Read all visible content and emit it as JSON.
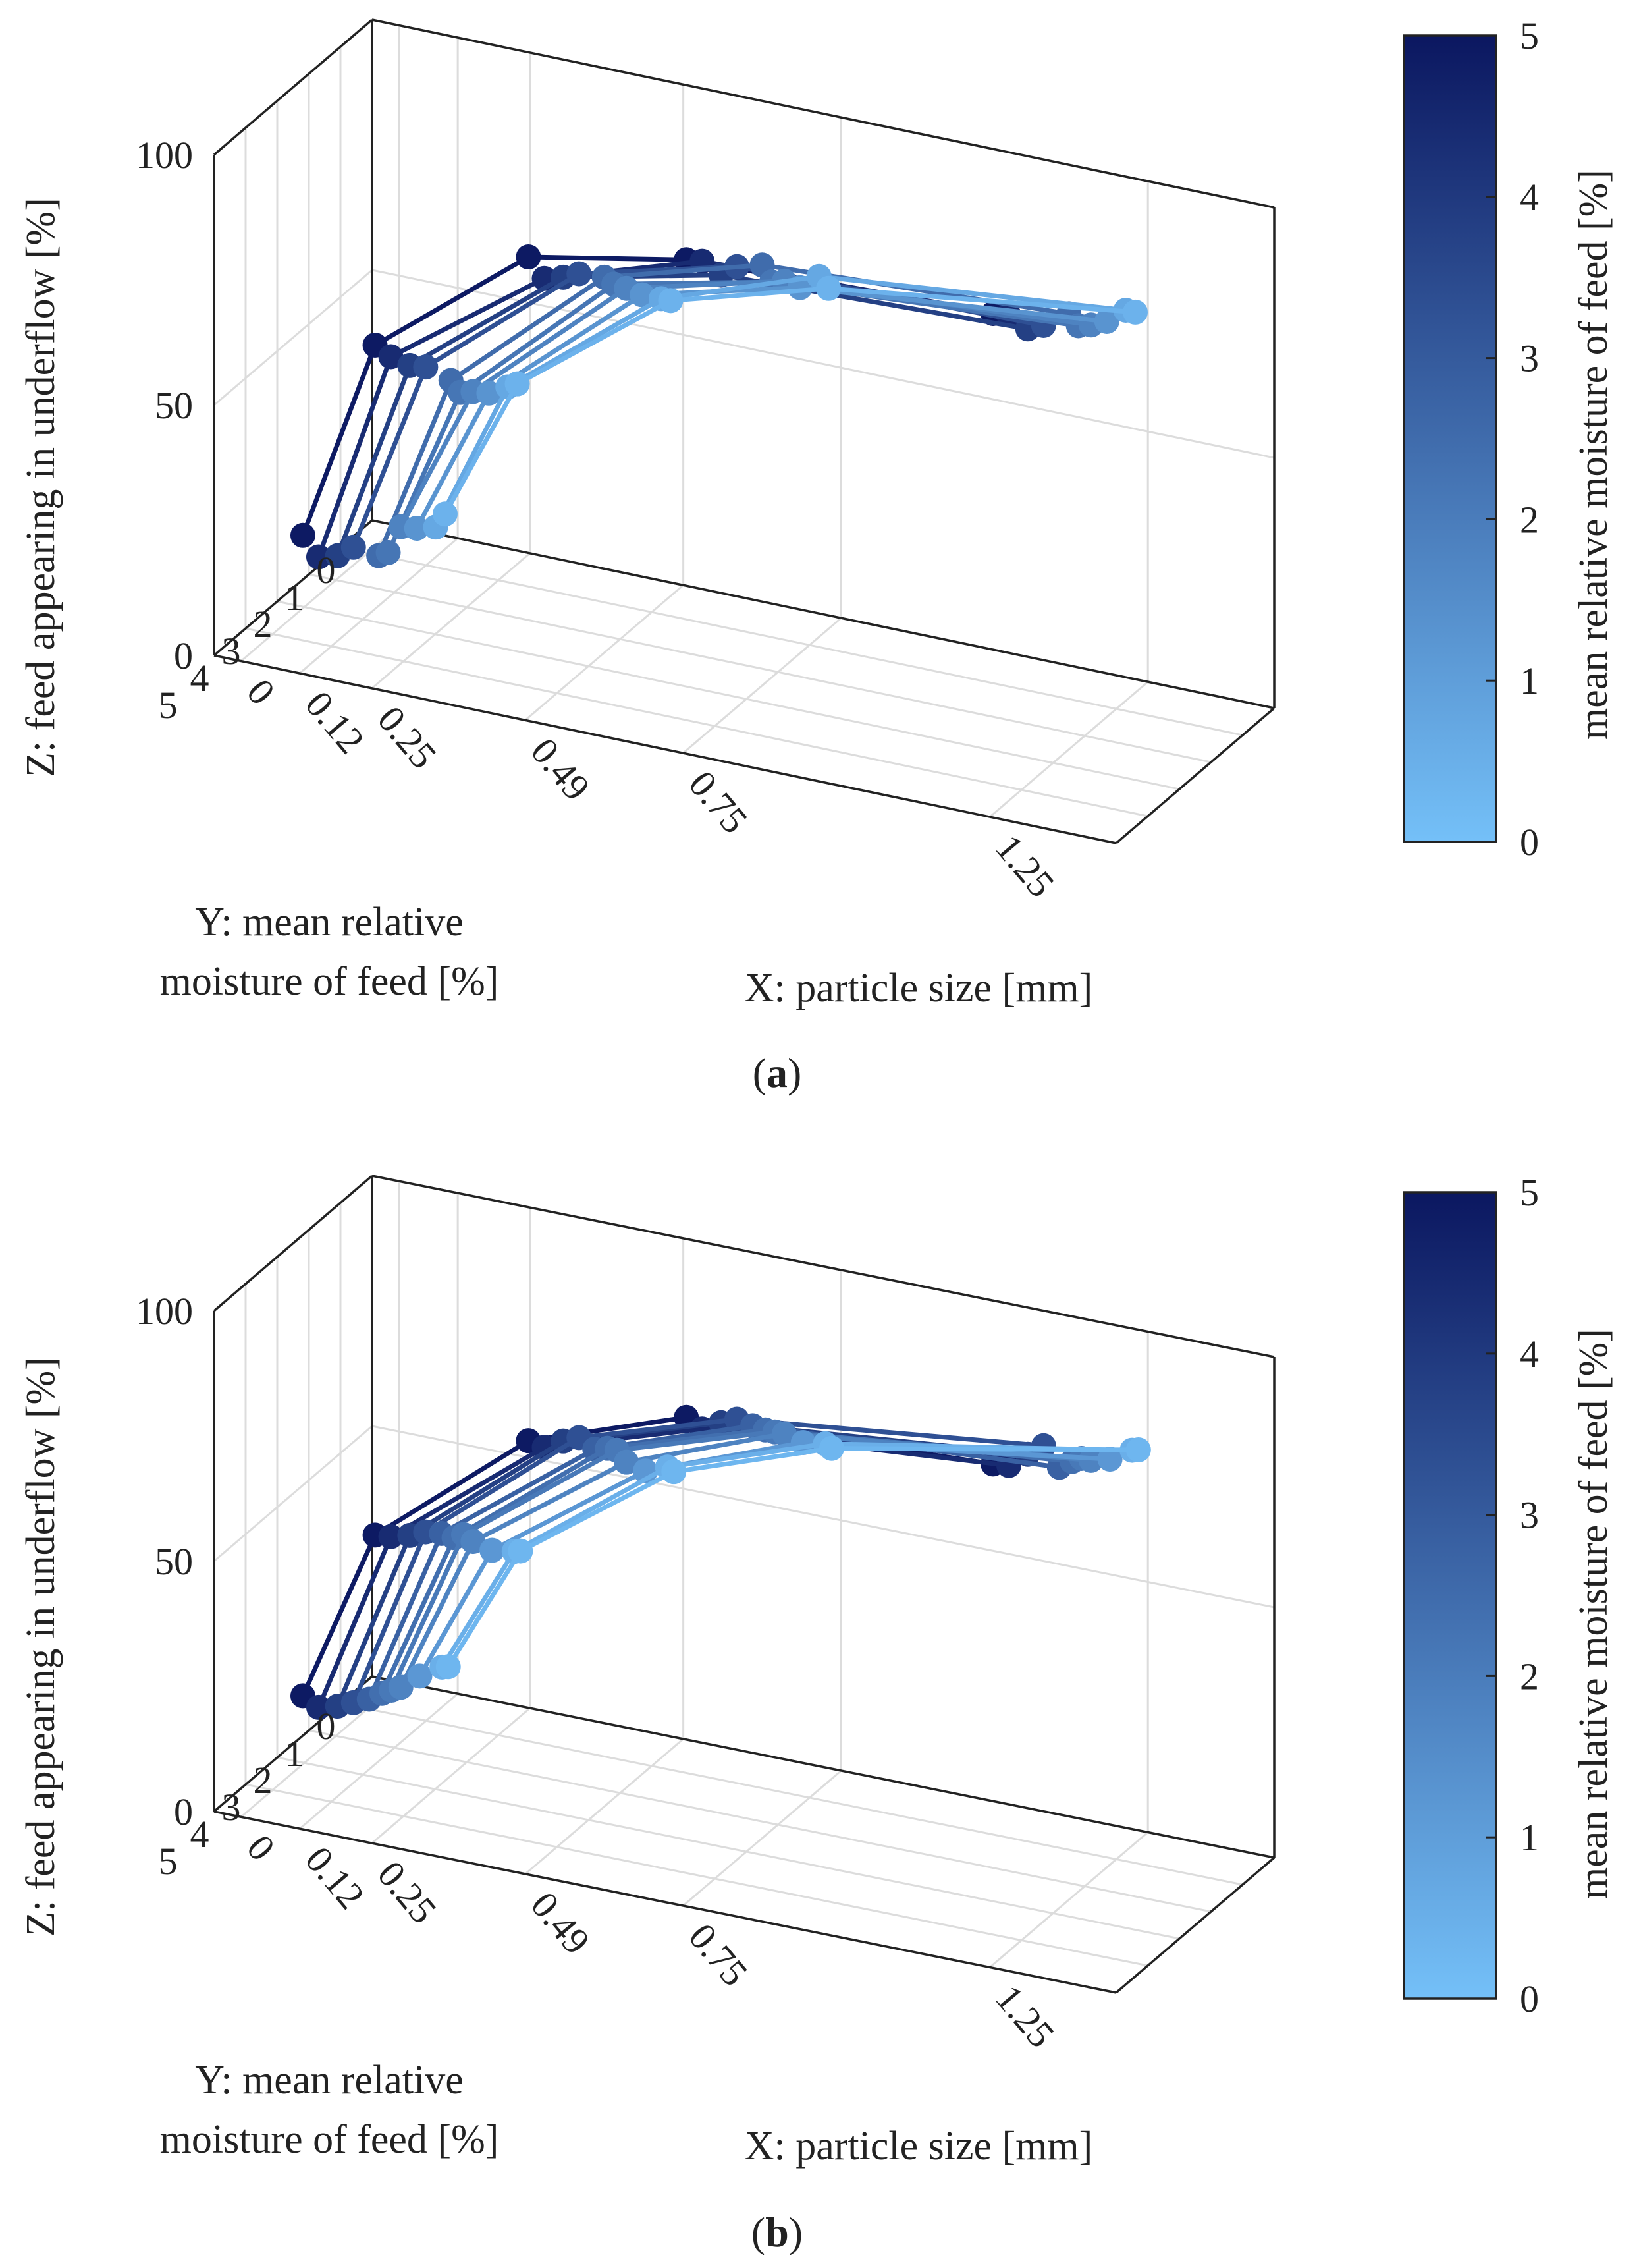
{
  "colors": {
    "dark": "#0b1760",
    "light": "#74c0f8",
    "grid": "#dcdcdc",
    "axis": "#222222"
  },
  "panels": [
    {
      "label_open": "(",
      "label_letter": "a",
      "label_close": ")"
    },
    {
      "label_open": "(",
      "label_letter": "b",
      "label_close": ")"
    }
  ],
  "colorbar": {
    "label": "mean relative moisture of feed [%]",
    "ticks": [
      "0",
      "1",
      "2",
      "3",
      "4",
      "5"
    ]
  },
  "chart_data": [
    {
      "type": "line3d-scatter",
      "title": "(a)",
      "xlabel": "X: particle size [mm]",
      "ylabel_line1": "Y: mean relative",
      "ylabel_line2": "moisture of feed [%]",
      "zlabel": "Z: feed appearing in underflow [%]",
      "x_ticks": [
        "0",
        "0.12",
        "0.25",
        "0.49",
        "0.75",
        "1.25"
      ],
      "y_ticks": [
        "0",
        "1",
        "2",
        "3",
        "4",
        "5"
      ],
      "z_ticks": [
        "0",
        "50",
        "100"
      ],
      "x": [
        0.12,
        0.25,
        0.49,
        0.75,
        1.25
      ],
      "ylim": [
        0,
        5
      ],
      "zlim": [
        0,
        100
      ],
      "series": [
        {
          "moisture": 4.9,
          "z": [
            27,
            68,
            92,
            98,
            100
          ]
        },
        {
          "moisture": 4.4,
          "z": [
            20,
            63,
            85,
            95,
            97
          ]
        },
        {
          "moisture": 3.8,
          "z": [
            17,
            58,
            82,
            89,
            91
          ]
        },
        {
          "moisture": 3.3,
          "z": [
            16,
            55,
            80,
            88,
            89
          ]
        },
        {
          "moisture": 2.5,
          "z": [
            10,
            48,
            75,
            84,
            87
          ]
        },
        {
          "moisture": 2.2,
          "z": [
            9,
            44,
            72,
            79,
            83
          ]
        },
        {
          "moisture": 1.8,
          "z": [
            12,
            42,
            69,
            77,
            81
          ]
        },
        {
          "moisture": 1.3,
          "z": [
            9,
            39,
            65,
            73,
            79
          ]
        },
        {
          "moisture": 0.7,
          "z": [
            6,
            37,
            61,
            72,
            78
          ]
        },
        {
          "moisture": 0.4,
          "z": [
            7,
            36,
            59,
            68,
            76
          ]
        }
      ]
    },
    {
      "type": "line3d-scatter",
      "title": "(b)",
      "xlabel": "X: particle size [mm]",
      "ylabel_line1": "Y: mean relative",
      "ylabel_line2": "moisture of feed [%]",
      "zlabel": "Z: feed appearing in underflow [%]",
      "x_ticks": [
        "0",
        "0.12",
        "0.25",
        "0.49",
        "0.75",
        "1.25"
      ],
      "y_ticks": [
        "0",
        "1",
        "2",
        "3",
        "4",
        "5"
      ],
      "z_ticks": [
        "0",
        "50",
        "100"
      ],
      "x": [
        0.12,
        0.25,
        0.49,
        0.75,
        1.25
      ],
      "ylim": [
        0,
        5
      ],
      "zlim": [
        0,
        100
      ],
      "series": [
        {
          "moisture": 4.9,
          "z": [
            26,
            61,
            86,
            97,
            100
          ]
        },
        {
          "moisture": 4.4,
          "z": [
            21,
            58,
            82,
            92,
            97
          ]
        },
        {
          "moisture": 3.8,
          "z": [
            18,
            55,
            80,
            90,
            96
          ]
        },
        {
          "moisture": 3.3,
          "z": [
            16,
            53,
            78,
            88,
            95
          ]
        },
        {
          "moisture": 2.8,
          "z": [
            14,
            50,
            73,
            84,
            88
          ]
        },
        {
          "moisture": 2.4,
          "z": [
            13,
            47,
            71,
            81,
            87
          ]
        },
        {
          "moisture": 2.1,
          "z": [
            12,
            46,
            69,
            79,
            86
          ]
        },
        {
          "moisture": 1.8,
          "z": [
            11,
            43,
            65,
            77,
            84
          ]
        },
        {
          "moisture": 1.2,
          "z": [
            10,
            38,
            60,
            72,
            81
          ]
        },
        {
          "moisture": 0.5,
          "z": [
            8,
            34,
            57,
            68,
            79
          ]
        },
        {
          "moisture": 0.3,
          "z": [
            7,
            33,
            55,
            66,
            78
          ]
        }
      ]
    }
  ]
}
